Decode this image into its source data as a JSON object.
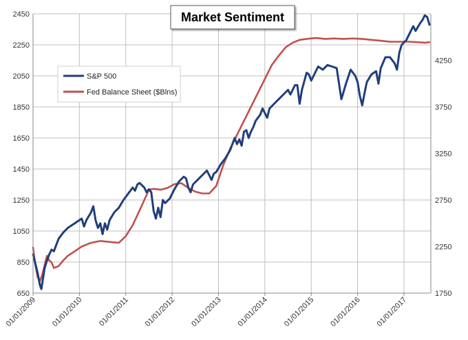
{
  "chart_data": {
    "type": "line",
    "title": "Market Sentiment",
    "legend_position": "upper-left inside plot",
    "grid": true,
    "colors": {
      "sp500": "#1f3f7a",
      "fed": "#c0504d",
      "grid": "#bfbfbf",
      "axis": "#888888"
    },
    "x_ticks": [
      "01/01/2009",
      "01/01/2010",
      "01/01/2011",
      "01/01/2012",
      "01/01/2013",
      "01/01/2014",
      "01/01/2015",
      "01/01/2016",
      "01/01/2017"
    ],
    "y_left": {
      "ylim": [
        650,
        2450
      ],
      "ticks": [
        650,
        850,
        1050,
        1250,
        1450,
        1650,
        1850,
        2050,
        2250,
        2450
      ]
    },
    "y_right": {
      "ylim": [
        1750,
        4750
      ],
      "ticks": [
        1750,
        2250,
        2750,
        3250,
        3750,
        4250
      ]
    },
    "x_range": [
      2009.0,
      2017.58
    ],
    "series": [
      {
        "name": "S&P 500",
        "axis": "left",
        "points": [
          [
            2009.0,
            900
          ],
          [
            2009.05,
            840
          ],
          [
            2009.1,
            780
          ],
          [
            2009.15,
            700
          ],
          [
            2009.18,
            676
          ],
          [
            2009.25,
            810
          ],
          [
            2009.3,
            860
          ],
          [
            2009.35,
            900
          ],
          [
            2009.4,
            930
          ],
          [
            2009.45,
            920
          ],
          [
            2009.5,
            960
          ],
          [
            2009.55,
            1000
          ],
          [
            2009.65,
            1040
          ],
          [
            2009.75,
            1070
          ],
          [
            2009.85,
            1090
          ],
          [
            2009.95,
            1110
          ],
          [
            2010.05,
            1130
          ],
          [
            2010.1,
            1080
          ],
          [
            2010.15,
            1120
          ],
          [
            2010.25,
            1170
          ],
          [
            2010.3,
            1210
          ],
          [
            2010.35,
            1120
          ],
          [
            2010.4,
            1070
          ],
          [
            2010.45,
            1100
          ],
          [
            2010.5,
            1030
          ],
          [
            2010.55,
            1100
          ],
          [
            2010.6,
            1060
          ],
          [
            2010.65,
            1120
          ],
          [
            2010.75,
            1170
          ],
          [
            2010.85,
            1200
          ],
          [
            2010.95,
            1250
          ],
          [
            2011.05,
            1290
          ],
          [
            2011.15,
            1330
          ],
          [
            2011.2,
            1310
          ],
          [
            2011.25,
            1350
          ],
          [
            2011.3,
            1360
          ],
          [
            2011.4,
            1330
          ],
          [
            2011.45,
            1300
          ],
          [
            2011.5,
            1320
          ],
          [
            2011.55,
            1300
          ],
          [
            2011.6,
            1180
          ],
          [
            2011.65,
            1130
          ],
          [
            2011.7,
            1200
          ],
          [
            2011.75,
            1140
          ],
          [
            2011.8,
            1250
          ],
          [
            2011.85,
            1230
          ],
          [
            2011.95,
            1260
          ],
          [
            2012.05,
            1320
          ],
          [
            2012.15,
            1370
          ],
          [
            2012.25,
            1400
          ],
          [
            2012.3,
            1390
          ],
          [
            2012.35,
            1330
          ],
          [
            2012.4,
            1300
          ],
          [
            2012.45,
            1350
          ],
          [
            2012.55,
            1380
          ],
          [
            2012.65,
            1410
          ],
          [
            2012.75,
            1440
          ],
          [
            2012.8,
            1410
          ],
          [
            2012.85,
            1380
          ],
          [
            2012.9,
            1420
          ],
          [
            2012.95,
            1430
          ],
          [
            2013.05,
            1480
          ],
          [
            2013.15,
            1520
          ],
          [
            2013.25,
            1570
          ],
          [
            2013.35,
            1650
          ],
          [
            2013.4,
            1610
          ],
          [
            2013.45,
            1640
          ],
          [
            2013.5,
            1600
          ],
          [
            2013.55,
            1690
          ],
          [
            2013.6,
            1700
          ],
          [
            2013.65,
            1650
          ],
          [
            2013.7,
            1690
          ],
          [
            2013.75,
            1720
          ],
          [
            2013.8,
            1760
          ],
          [
            2013.9,
            1800
          ],
          [
            2013.95,
            1840
          ],
          [
            2014.05,
            1780
          ],
          [
            2014.1,
            1840
          ],
          [
            2014.2,
            1870
          ],
          [
            2014.3,
            1900
          ],
          [
            2014.4,
            1930
          ],
          [
            2014.5,
            1960
          ],
          [
            2014.55,
            1930
          ],
          [
            2014.65,
            1990
          ],
          [
            2014.7,
            1990
          ],
          [
            2014.75,
            1870
          ],
          [
            2014.8,
            1960
          ],
          [
            2014.9,
            2070
          ],
          [
            2014.95,
            2060
          ],
          [
            2015.0,
            2020
          ],
          [
            2015.05,
            2050
          ],
          [
            2015.15,
            2110
          ],
          [
            2015.25,
            2090
          ],
          [
            2015.35,
            2120
          ],
          [
            2015.45,
            2110
          ],
          [
            2015.55,
            2100
          ],
          [
            2015.6,
            2000
          ],
          [
            2015.65,
            1900
          ],
          [
            2015.7,
            1950
          ],
          [
            2015.75,
            2000
          ],
          [
            2015.85,
            2090
          ],
          [
            2015.95,
            2050
          ],
          [
            2016.0,
            2010
          ],
          [
            2016.05,
            1920
          ],
          [
            2016.1,
            1860
          ],
          [
            2016.15,
            1940
          ],
          [
            2016.2,
            2010
          ],
          [
            2016.3,
            2060
          ],
          [
            2016.4,
            2080
          ],
          [
            2016.45,
            2000
          ],
          [
            2016.5,
            2100
          ],
          [
            2016.6,
            2170
          ],
          [
            2016.7,
            2170
          ],
          [
            2016.8,
            2130
          ],
          [
            2016.85,
            2090
          ],
          [
            2016.9,
            2200
          ],
          [
            2016.95,
            2250
          ],
          [
            2017.05,
            2280
          ],
          [
            2017.15,
            2340
          ],
          [
            2017.2,
            2370
          ],
          [
            2017.25,
            2340
          ],
          [
            2017.35,
            2390
          ],
          [
            2017.4,
            2410
          ],
          [
            2017.45,
            2440
          ],
          [
            2017.5,
            2430
          ],
          [
            2017.55,
            2380
          ]
        ]
      },
      {
        "name": "Fed Balance Sheet ($Blns)",
        "axis": "right",
        "points": [
          [
            2009.0,
            2240
          ],
          [
            2009.05,
            2050
          ],
          [
            2009.1,
            1920
          ],
          [
            2009.15,
            1880
          ],
          [
            2009.2,
            1950
          ],
          [
            2009.25,
            2050
          ],
          [
            2009.3,
            2150
          ],
          [
            2009.35,
            2100
          ],
          [
            2009.4,
            2080
          ],
          [
            2009.45,
            2020
          ],
          [
            2009.55,
            2040
          ],
          [
            2009.65,
            2100
          ],
          [
            2009.75,
            2150
          ],
          [
            2009.9,
            2200
          ],
          [
            2010.05,
            2250
          ],
          [
            2010.25,
            2290
          ],
          [
            2010.45,
            2310
          ],
          [
            2010.65,
            2300
          ],
          [
            2010.85,
            2290
          ],
          [
            2011.0,
            2360
          ],
          [
            2011.15,
            2480
          ],
          [
            2011.3,
            2640
          ],
          [
            2011.4,
            2750
          ],
          [
            2011.5,
            2860
          ],
          [
            2011.6,
            2870
          ],
          [
            2011.75,
            2860
          ],
          [
            2011.9,
            2880
          ],
          [
            2012.05,
            2920
          ],
          [
            2012.2,
            2930
          ],
          [
            2012.35,
            2880
          ],
          [
            2012.5,
            2840
          ],
          [
            2012.65,
            2820
          ],
          [
            2012.8,
            2820
          ],
          [
            2012.95,
            2900
          ],
          [
            2013.1,
            3120
          ],
          [
            2013.25,
            3300
          ],
          [
            2013.4,
            3450
          ],
          [
            2013.55,
            3600
          ],
          [
            2013.7,
            3750
          ],
          [
            2013.85,
            3900
          ],
          [
            2014.0,
            4050
          ],
          [
            2014.15,
            4200
          ],
          [
            2014.3,
            4300
          ],
          [
            2014.45,
            4390
          ],
          [
            2014.6,
            4440
          ],
          [
            2014.75,
            4470
          ],
          [
            2014.9,
            4480
          ],
          [
            2015.1,
            4490
          ],
          [
            2015.3,
            4480
          ],
          [
            2015.5,
            4485
          ],
          [
            2015.7,
            4480
          ],
          [
            2015.9,
            4485
          ],
          [
            2016.1,
            4480
          ],
          [
            2016.3,
            4470
          ],
          [
            2016.5,
            4460
          ],
          [
            2016.7,
            4450
          ],
          [
            2016.9,
            4450
          ],
          [
            2017.1,
            4450
          ],
          [
            2017.3,
            4445
          ],
          [
            2017.45,
            4440
          ],
          [
            2017.55,
            4445
          ]
        ]
      }
    ]
  }
}
